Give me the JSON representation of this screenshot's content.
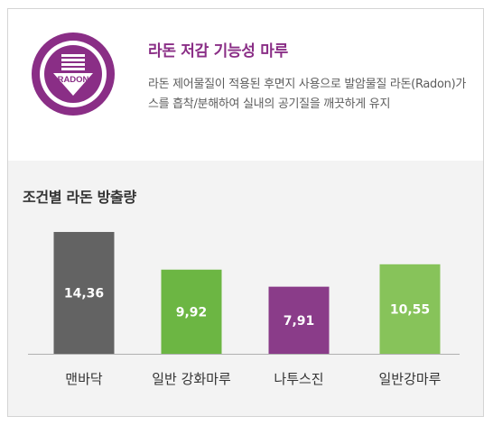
{
  "header": {
    "logo_text": "RADON",
    "title": "라돈 저감 기능성 마루",
    "description": "라돈 제어물질이 적용된 후면지 사용으로 발암물질 라돈(Radon)가스를 흡착/분해하여 실내의 공기질을 깨끗하게 유지"
  },
  "colors": {
    "brand_purple": "#8a2e86",
    "background_gray": "#f3f3f3"
  },
  "chart_data": {
    "type": "bar",
    "title": "조건별 라돈 방출량",
    "categories": [
      "맨바닥",
      "일반 강화마루",
      "나투스진",
      "일반강마루"
    ],
    "values": [
      14.36,
      9.92,
      7.91,
      10.55
    ],
    "value_labels": [
      "14,36",
      "9,92",
      "7,91",
      "10,55"
    ],
    "colors": [
      "#636363",
      "#6cb643",
      "#8a3c89",
      "#87c35a"
    ],
    "ylim": [
      0,
      15
    ],
    "grid": false,
    "legend": "none"
  }
}
